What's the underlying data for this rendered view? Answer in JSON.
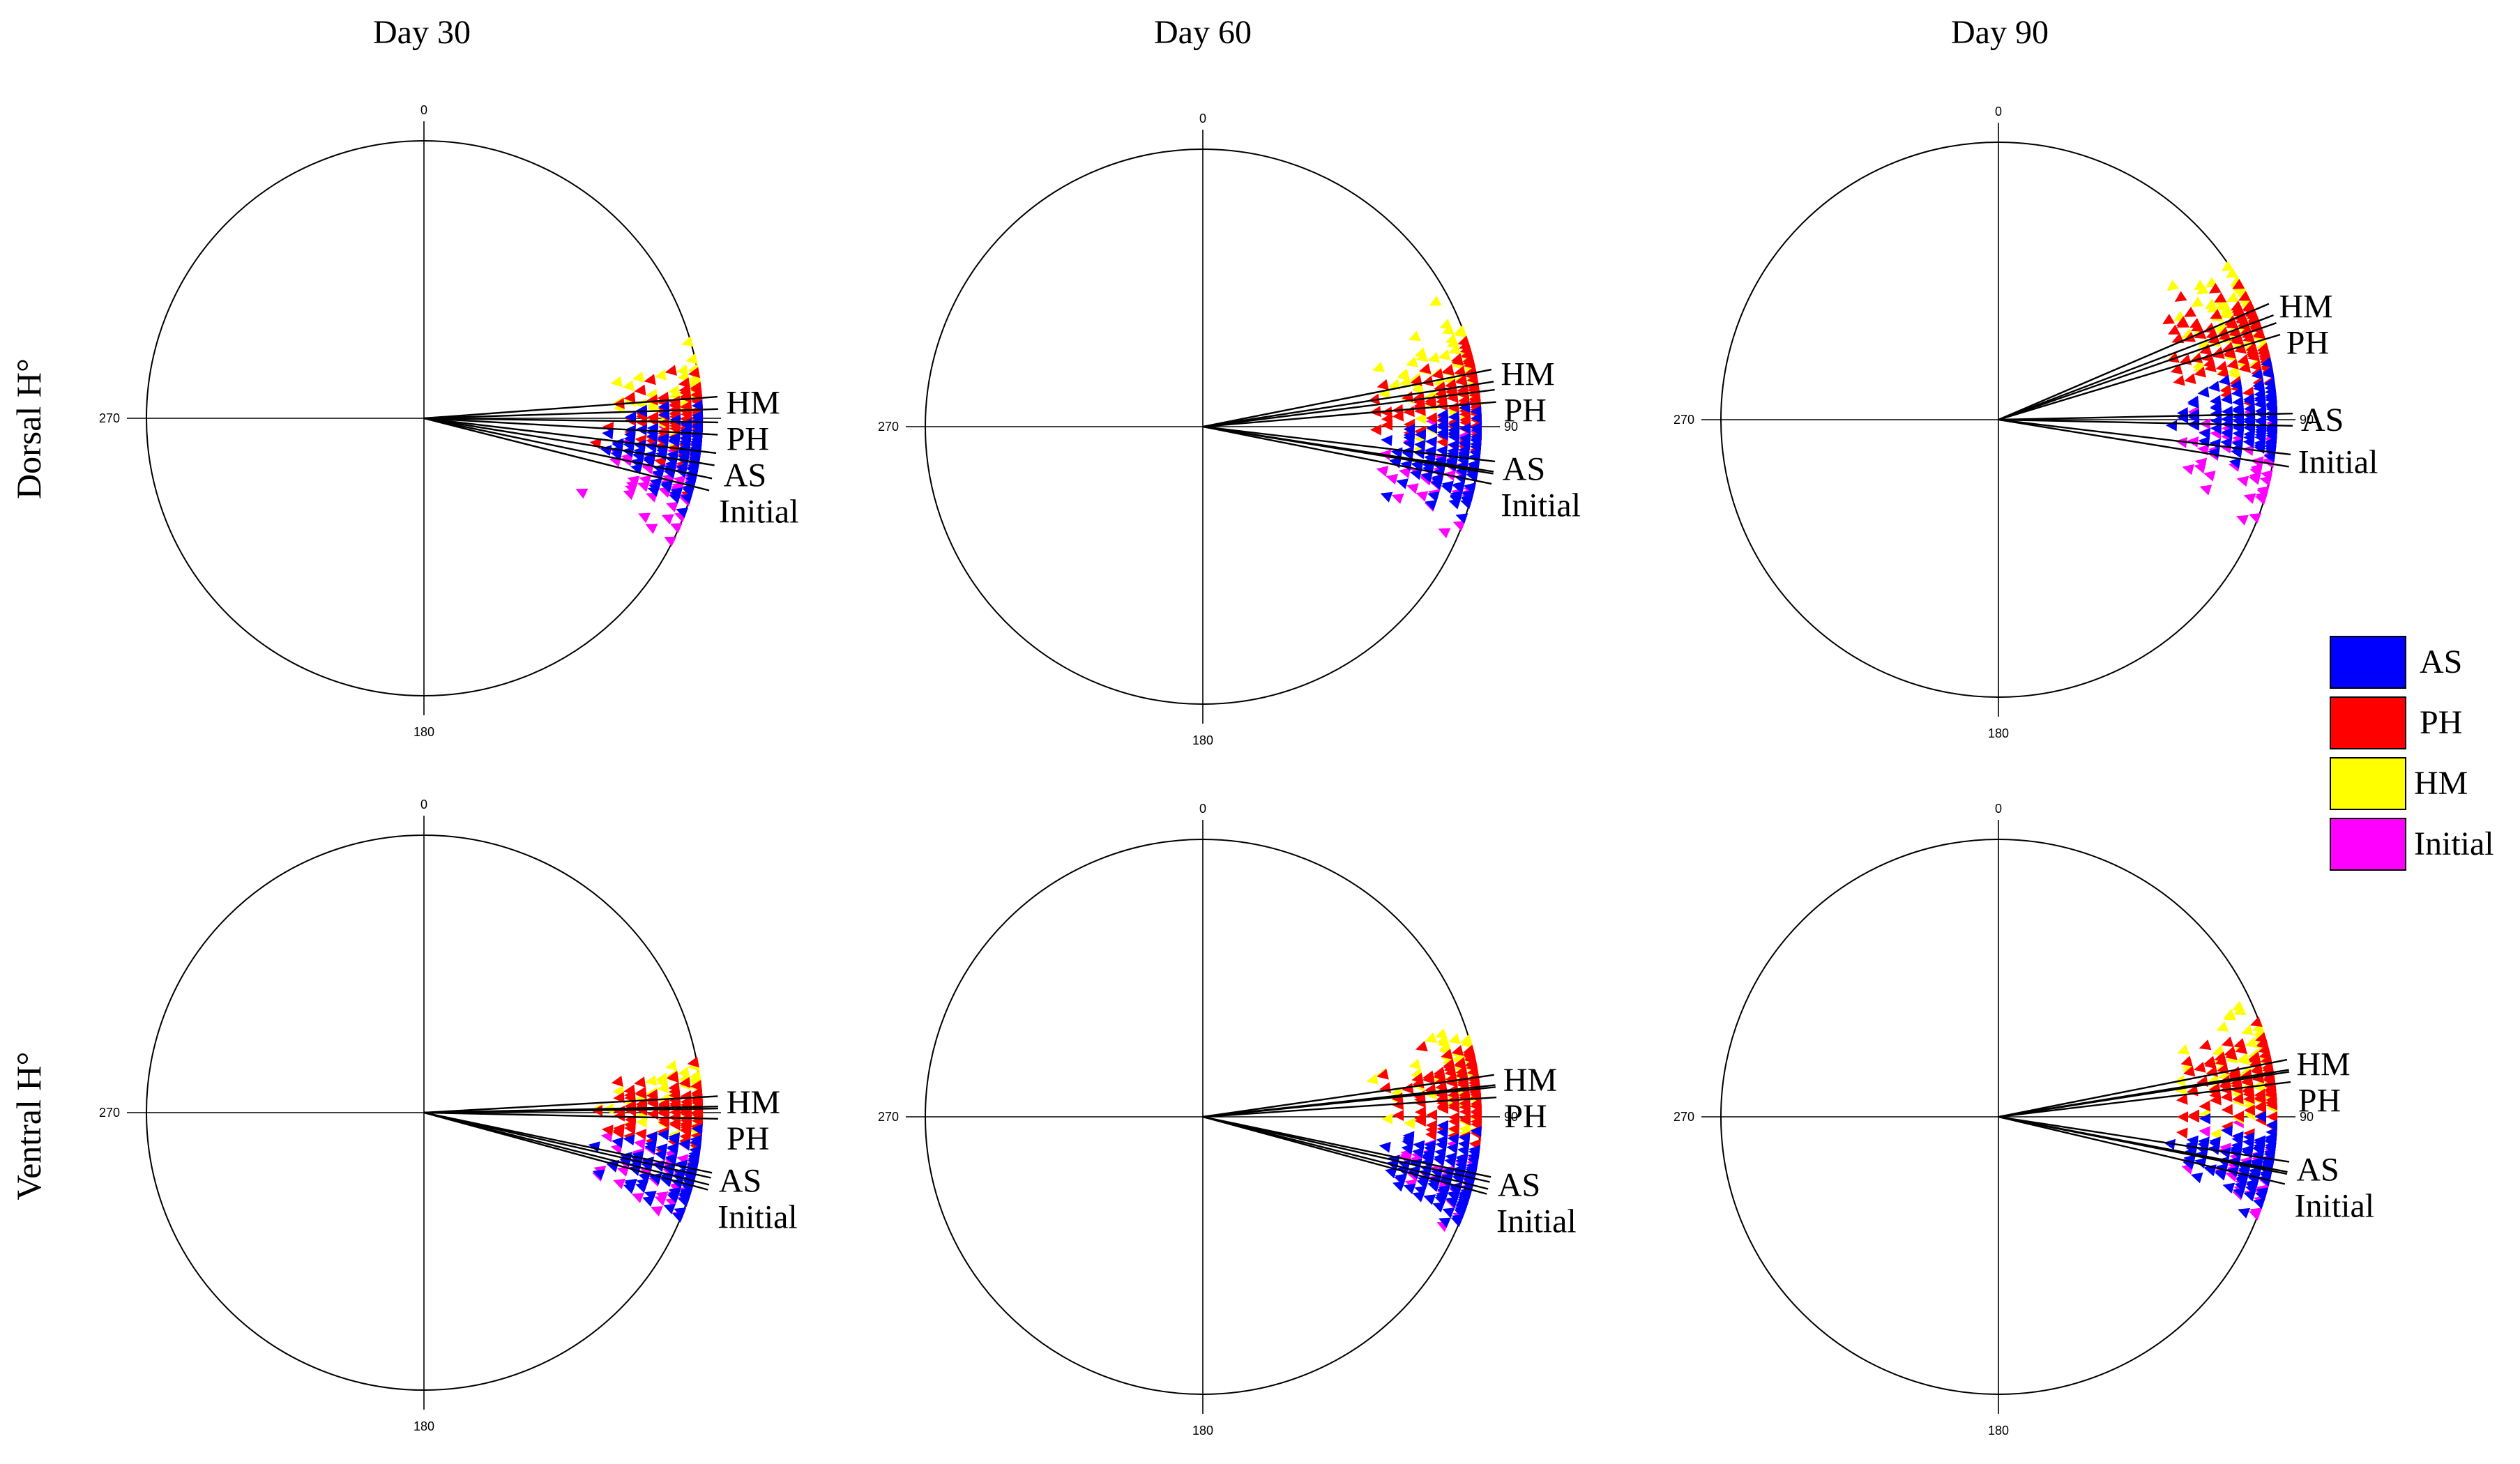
{
  "figure": {
    "col_titles": [
      "Day 30",
      "Day 60",
      "Day 90"
    ],
    "row_titles": [
      "Dorsal H°",
      "Ventral H°"
    ]
  },
  "colors": {
    "AS": "#0000ff",
    "PH": "#ff0000",
    "HM": "#ffff00",
    "Initial": "#ff00ff"
  },
  "legend": [
    {
      "key": "AS",
      "label": "AS"
    },
    {
      "key": "PH",
      "label": "PH"
    },
    {
      "key": "HM",
      "label": "HM"
    },
    {
      "key": "Initial",
      "label": "Initial"
    }
  ],
  "chart_data": [
    {
      "type": "scatter",
      "subtype": "circular-rose",
      "panel": "Dorsal - Day 30",
      "angle_labels": [
        "0",
        "90",
        "180",
        "270"
      ],
      "show_90_label": false,
      "units": "degrees (hue)",
      "series": [
        {
          "name": "AS",
          "mean_angle": 98,
          "spread": 9,
          "points": 130
        },
        {
          "name": "PH",
          "mean_angle": 92,
          "spread": 9,
          "points": 120
        },
        {
          "name": "HM",
          "mean_angle": 87,
          "spread": 10,
          "points": 80
        },
        {
          "name": "Initial",
          "mean_angle": 103,
          "spread": 10,
          "points": 80
        }
      ],
      "mean_line_labels": [
        "HM",
        "PH",
        "AS",
        "Initial"
      ]
    },
    {
      "type": "scatter",
      "subtype": "circular-rose",
      "panel": "Dorsal - Day 60",
      "angle_labels": [
        "0",
        "90",
        "180",
        "270"
      ],
      "show_90_label": true,
      "units": "degrees (hue)",
      "series": [
        {
          "name": "AS",
          "mean_angle": 98,
          "spread": 10,
          "points": 130
        },
        {
          "name": "PH",
          "mean_angle": 84,
          "spread": 10,
          "points": 120
        },
        {
          "name": "HM",
          "mean_angle": 80,
          "spread": 12,
          "points": 90
        },
        {
          "name": "Initial",
          "mean_angle": 100,
          "spread": 10,
          "points": 60
        }
      ],
      "mean_line_labels": [
        "HM",
        "PH",
        "AS",
        "Initial"
      ]
    },
    {
      "type": "scatter",
      "subtype": "circular-rose",
      "panel": "Dorsal - Day 90",
      "angle_labels": [
        "0",
        "90",
        "180",
        "270"
      ],
      "show_90_label": true,
      "units": "degrees (hue)",
      "series": [
        {
          "name": "AS",
          "mean_angle": 90,
          "spread": 9,
          "points": 130
        },
        {
          "name": "PH",
          "mean_angle": 72,
          "spread": 11,
          "points": 120
        },
        {
          "name": "HM",
          "mean_angle": 68,
          "spread": 12,
          "points": 90
        },
        {
          "name": "Initial",
          "mean_angle": 98,
          "spread": 10,
          "points": 60
        }
      ],
      "mean_line_labels": [
        "HM",
        "PH",
        "AS",
        "Initial"
      ]
    },
    {
      "type": "scatter",
      "subtype": "circular-rose",
      "panel": "Ventral - Day 30",
      "angle_labels": [
        "0",
        "90",
        "180",
        "270"
      ],
      "show_90_label": false,
      "units": "degrees (hue)",
      "series": [
        {
          "name": "AS",
          "mean_angle": 103,
          "spread": 8,
          "points": 100
        },
        {
          "name": "PH",
          "mean_angle": 90,
          "spread": 8,
          "points": 110
        },
        {
          "name": "HM",
          "mean_angle": 88,
          "spread": 8,
          "points": 70
        },
        {
          "name": "Initial",
          "mean_angle": 104,
          "spread": 8,
          "points": 60
        }
      ],
      "mean_line_labels": [
        "HM",
        "PH",
        "AS",
        "Initial"
      ]
    },
    {
      "type": "scatter",
      "subtype": "circular-rose",
      "panel": "Ventral - Day 60",
      "angle_labels": [
        "0",
        "90",
        "180",
        "270"
      ],
      "show_90_label": true,
      "units": "degrees (hue)",
      "series": [
        {
          "name": "AS",
          "mean_angle": 103,
          "spread": 8,
          "points": 130
        },
        {
          "name": "PH",
          "mean_angle": 85,
          "spread": 9,
          "points": 120
        },
        {
          "name": "HM",
          "mean_angle": 83,
          "spread": 10,
          "points": 90
        },
        {
          "name": "Initial",
          "mean_angle": 104,
          "spread": 8,
          "points": 60
        }
      ],
      "mean_line_labels": [
        "HM",
        "PH",
        "AS",
        "Initial"
      ]
    },
    {
      "type": "scatter",
      "subtype": "circular-rose",
      "panel": "Ventral - Day 90",
      "angle_labels": [
        "0",
        "90",
        "180",
        "270"
      ],
      "show_90_label": true,
      "units": "degrees (hue)",
      "series": [
        {
          "name": "AS",
          "mean_angle": 100,
          "spread": 8,
          "points": 130
        },
        {
          "name": "PH",
          "mean_angle": 82,
          "spread": 10,
          "points": 120
        },
        {
          "name": "HM",
          "mean_angle": 80,
          "spread": 11,
          "points": 90
        },
        {
          "name": "Initial",
          "mean_angle": 102,
          "spread": 8,
          "points": 60
        }
      ],
      "mean_line_labels": [
        "HM",
        "PH",
        "AS",
        "Initial"
      ]
    }
  ]
}
